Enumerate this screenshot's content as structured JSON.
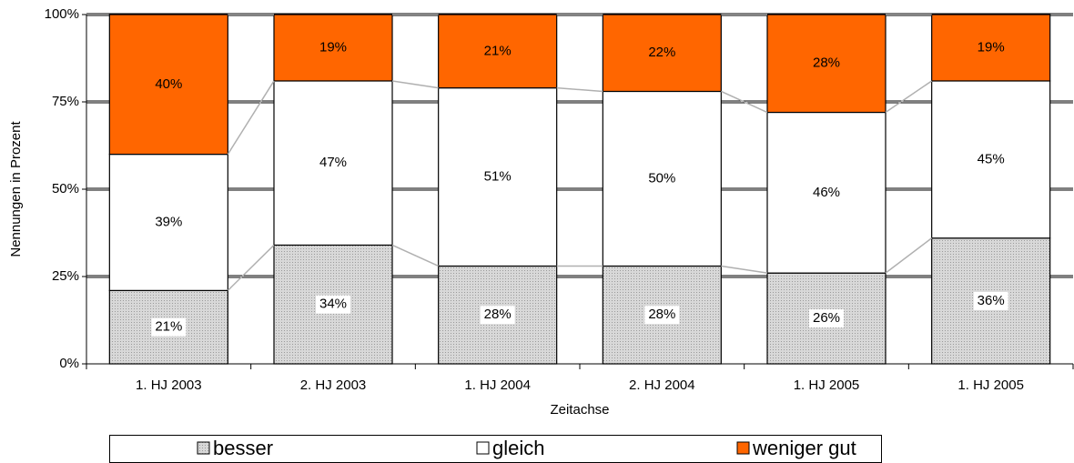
{
  "chart_data": {
    "type": "stacked_bar",
    "y_label": "Nennungen in Prozent",
    "x_label": "Zeitachse",
    "categories": [
      "1. HJ 2003",
      "2. HJ 2003",
      "1. HJ 2004",
      "2. HJ 2004",
      "1. HJ 2005",
      "1. HJ 2005"
    ],
    "series": [
      {
        "name": "besser",
        "color": "#c8c8c8",
        "values": [
          21,
          34,
          28,
          28,
          26,
          36
        ],
        "value_labels": [
          "21%",
          "34%",
          "28%",
          "28%",
          "26%",
          "36%"
        ]
      },
      {
        "name": "gleich",
        "color": "#ffffff",
        "values": [
          39,
          47,
          51,
          50,
          46,
          45
        ],
        "value_labels": [
          "39%",
          "47%",
          "51%",
          "50%",
          "46%",
          "45%"
        ]
      },
      {
        "name": "weniger gut",
        "color": "#ff6600",
        "values": [
          40,
          19,
          21,
          22,
          28,
          19
        ],
        "value_labels": [
          "40%",
          "19%",
          "21%",
          "22%",
          "28%",
          "19%"
        ]
      }
    ],
    "ylim": [
      0,
      100
    ],
    "yticks": [
      {
        "value": 0,
        "label": "0%"
      },
      {
        "value": 25,
        "label": "25%"
      },
      {
        "value": 50,
        "label": "50%"
      },
      {
        "value": 75,
        "label": "75%"
      },
      {
        "value": 100,
        "label": "100%"
      }
    ],
    "grid": true
  }
}
